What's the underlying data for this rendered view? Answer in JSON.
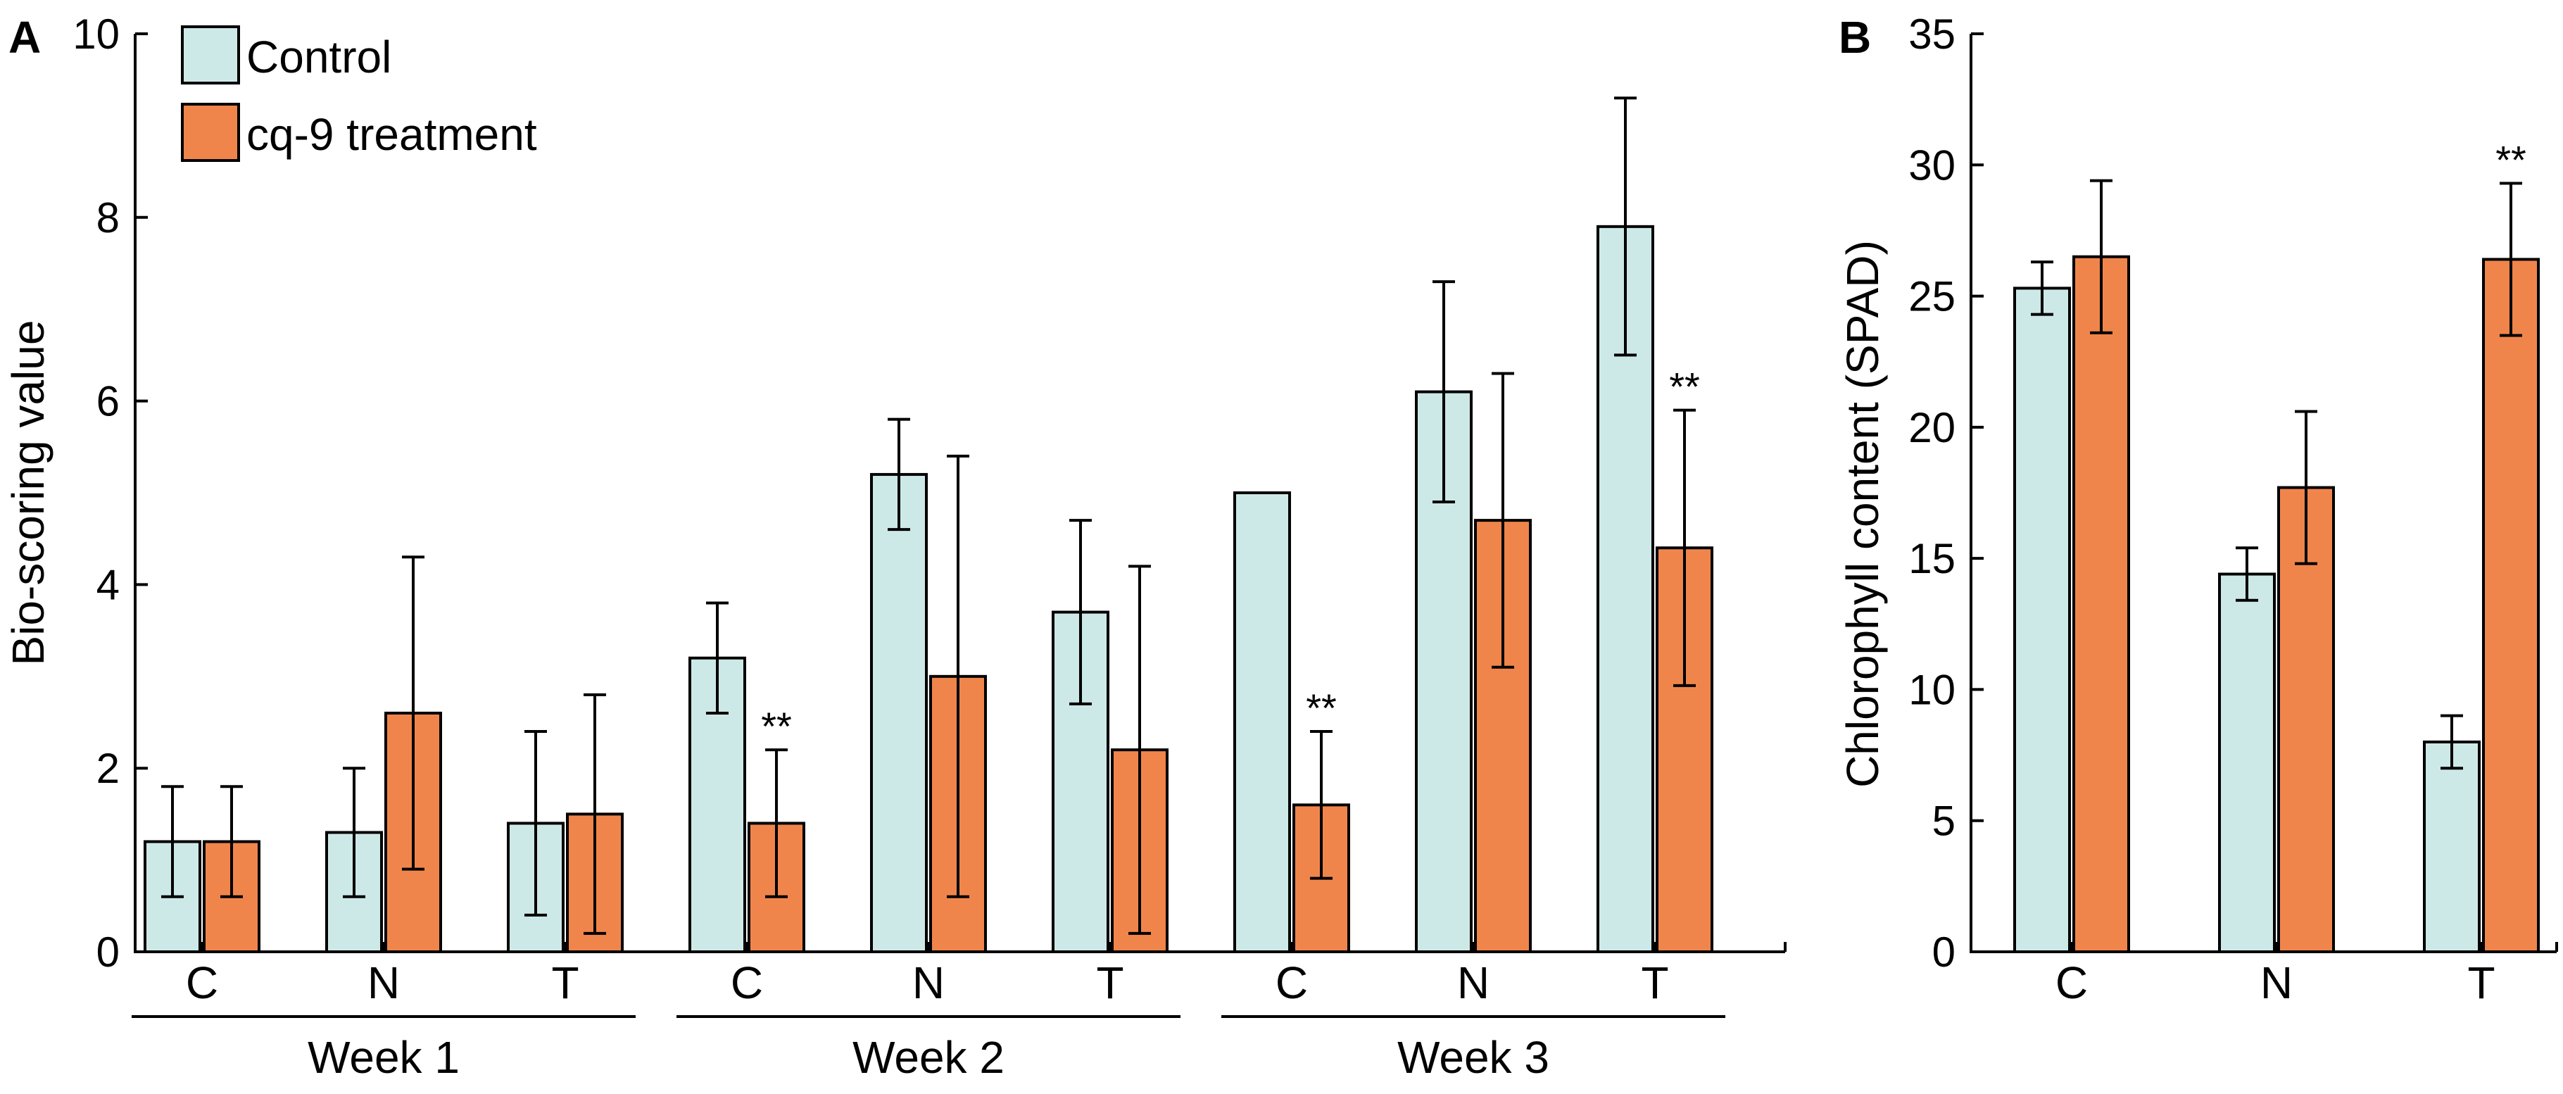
{
  "colors": {
    "control": "#cde9e7",
    "treatment": "#f0854c",
    "stroke": "#000000"
  },
  "legend": {
    "control_label": "Control",
    "treatment_label": "cq-9 treatment"
  },
  "chart_data": [
    {
      "panel": "A",
      "type": "bar",
      "ylabel": "Bio-scoring value",
      "ylim": [
        0,
        10
      ],
      "yticks": [
        0,
        2,
        4,
        6,
        8,
        10
      ],
      "groups": [
        "Week 1",
        "Week 2",
        "Week 3"
      ],
      "categories": [
        "C",
        "N",
        "T",
        "C",
        "N",
        "T",
        "C",
        "N",
        "T"
      ],
      "series": [
        {
          "name": "Control",
          "values": [
            1.2,
            1.3,
            1.4,
            3.2,
            5.2,
            3.7,
            5.0,
            6.1,
            7.9
          ],
          "errors": [
            0.6,
            0.7,
            1.0,
            0.6,
            0.6,
            1.0,
            0,
            1.2,
            1.4
          ]
        },
        {
          "name": "cq-9 treatment",
          "values": [
            1.2,
            2.6,
            1.5,
            1.4,
            3.0,
            2.2,
            1.6,
            4.7,
            4.4
          ],
          "errors": [
            0.6,
            1.7,
            1.3,
            0.8,
            2.4,
            2.0,
            0.8,
            1.6,
            1.5
          ]
        }
      ],
      "significance": [
        {
          "index": 3,
          "series": 1,
          "label": "**"
        },
        {
          "index": 6,
          "series": 1,
          "label": "**"
        },
        {
          "index": 8,
          "series": 1,
          "label": "**"
        }
      ]
    },
    {
      "panel": "B",
      "type": "bar",
      "ylabel": "Chlorophyll content (SPAD)",
      "ylim": [
        0,
        35
      ],
      "yticks": [
        0,
        5,
        10,
        15,
        20,
        25,
        30,
        35
      ],
      "categories": [
        "C",
        "N",
        "T"
      ],
      "series": [
        {
          "name": "Control",
          "values": [
            25.3,
            14.4,
            8.0
          ],
          "errors": [
            1.0,
            1.0,
            1.0
          ]
        },
        {
          "name": "cq-9 treatment",
          "values": [
            26.5,
            17.7,
            26.4
          ],
          "errors": [
            2.9,
            2.9,
            2.9
          ]
        }
      ],
      "significance": [
        {
          "index": 2,
          "series": 1,
          "label": "**"
        }
      ]
    }
  ]
}
